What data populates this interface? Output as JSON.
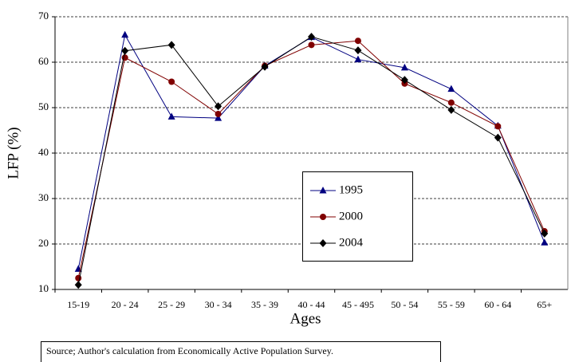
{
  "chart_data": {
    "type": "line",
    "x_label": "Ages",
    "y_label": "LFP (%)",
    "source": "Source; Author's calculation from Economically Active Population Survey.",
    "categories": [
      "15-19",
      "20 - 24",
      "25 - 29",
      "30 - 34",
      "35 - 39",
      "40 - 44",
      "45 - 495",
      "50 - 54",
      "55 - 59",
      "60 - 64",
      "65+"
    ],
    "series": [
      {
        "name": "1995",
        "color": "#000080",
        "marker": "triangle",
        "values": [
          14.5,
          66,
          48,
          47.7,
          59.2,
          65.5,
          60.6,
          58.8,
          54.1,
          46,
          20.3
        ]
      },
      {
        "name": "2000",
        "color": "#800000",
        "marker": "circle",
        "values": [
          12.5,
          61,
          55.7,
          48.6,
          59.2,
          63.8,
          64.7,
          55.3,
          51.1,
          45.9,
          22.8
        ]
      },
      {
        "name": "2004",
        "color": "#000000",
        "marker": "diamond",
        "values": [
          11,
          62.5,
          63.8,
          50.3,
          59,
          65.6,
          62.6,
          56.1,
          49.5,
          43.4,
          22.3
        ]
      }
    ],
    "ylim": [
      10,
      70
    ],
    "yticks": [
      10,
      20,
      30,
      40,
      50,
      60,
      70
    ],
    "grid": true
  }
}
